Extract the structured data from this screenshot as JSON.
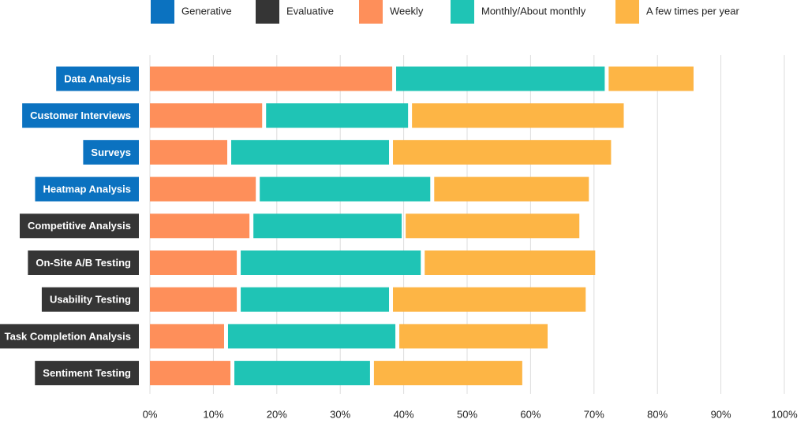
{
  "chart_data": {
    "type": "stacked-bar-horizontal",
    "categories": [
      "Data Analysis",
      "Customer Interviews",
      "Surveys",
      "Heatmap Analysis",
      "Competitive Analysis",
      "On-Site A/B Testing",
      "Usability Testing",
      "Task Completion Analysis",
      "Sentiment Testing"
    ],
    "label_groups": [
      {
        "name": "Generative",
        "color": "#0b72c0"
      },
      {
        "name": "Evaluative",
        "color": "#353535"
      }
    ],
    "category_group": [
      0,
      0,
      0,
      0,
      1,
      1,
      1,
      1,
      1
    ],
    "series": [
      {
        "name": "Weekly",
        "color": "#fe8f5a",
        "values": [
          38.5,
          18,
          12.5,
          17,
          16,
          14,
          14,
          12,
          13
        ]
      },
      {
        "name": "Monthly/About monthly",
        "color": "#1fc4b5",
        "values": [
          33.5,
          23,
          25.5,
          27.5,
          24,
          29,
          24,
          27,
          22
        ]
      },
      {
        "name": "A few times per year",
        "color": "#fdb545",
        "values": [
          14,
          34,
          35,
          25,
          28,
          27.5,
          31,
          24,
          24
        ]
      }
    ],
    "xlim": [
      0,
      100
    ],
    "xticks": [
      {
        "value": 0,
        "label": "0%"
      },
      {
        "value": 10,
        "label": "10%"
      },
      {
        "value": 20,
        "label": "20%"
      },
      {
        "value": 30,
        "label": "30%"
      },
      {
        "value": 40,
        "label": "40%"
      },
      {
        "value": 50,
        "label": "50%"
      },
      {
        "value": 60,
        "label": "60%"
      },
      {
        "value": 70,
        "label": "70%"
      },
      {
        "value": 80,
        "label": "80%"
      },
      {
        "value": 90,
        "label": "90%"
      },
      {
        "value": 100,
        "label": "100%"
      }
    ],
    "grid": true
  }
}
